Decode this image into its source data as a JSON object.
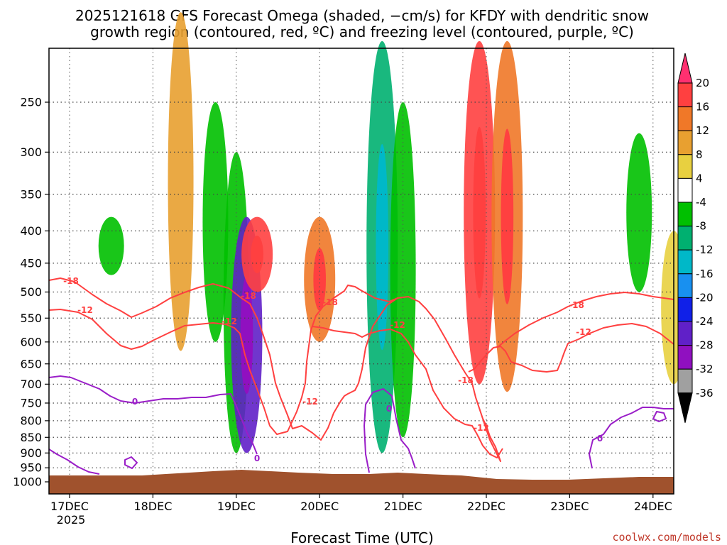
{
  "title_line1": "2025121618 GFS Forecast Omega (shaded, −cm/s) for KFDY with dendritic snow",
  "title_line2": "growth region (contoured, red, ºC) and freezing level (contoured, purple, ºC)",
  "credit": "coolwx.com/models",
  "chart_data": {
    "type": "heatmap",
    "title": "2025121618 GFS Forecast Omega (shaded, −cm/s) for KFDY with dendritic snow growth region (contoured, red, ºC) and freezing level (contoured, purple, ºC)",
    "xlabel": "Forecast Time (UTC)",
    "ylabel": "",
    "x_ticks": [
      "17DEC",
      "18DEC",
      "19DEC",
      "20DEC",
      "21DEC",
      "22DEC",
      "23DEC",
      "24DEC"
    ],
    "x_year_label": "2025",
    "y_ticks": [
      "250",
      "300",
      "350",
      "400",
      "450",
      "500",
      "550",
      "600",
      "650",
      "700",
      "750",
      "800",
      "850",
      "900",
      "950",
      "1000"
    ],
    "y_scale": "log-pressure",
    "ylim": [
      1000,
      200
    ],
    "grid": true,
    "colorbar": {
      "levels": [
        "20",
        "16",
        "12",
        "8",
        "4",
        "-4",
        "-8",
        "-12",
        "-16",
        "-20",
        "-24",
        "-28",
        "-32",
        "-36"
      ],
      "colors": [
        "#ff3070",
        "#ff4040",
        "#f07828",
        "#e8a030",
        "#e8d040",
        "#ffffff",
        "#00c000",
        "#00b070",
        "#00b8c8",
        "#1890f0",
        "#1020e8",
        "#6020c8",
        "#9010c0",
        "#a0a0a0",
        "#000000"
      ]
    },
    "contour_series": [
      {
        "color": "#ff4040",
        "labels": [
          "-18",
          "-12"
        ]
      },
      {
        "color": "#9a1ec8",
        "labels": [
          "0"
        ]
      }
    ],
    "omega_features": [
      {
        "x": "17DEC 12Z",
        "p_top": 380,
        "p_bot": 470,
        "value": -8
      },
      {
        "x": "18DEC 08Z",
        "p_top": 180,
        "p_bot": 620,
        "value": 8
      },
      {
        "x": "18DEC 18Z",
        "p_top": 250,
        "p_bot": 600,
        "value": -8
      },
      {
        "x": "19DEC 00Z",
        "p_top": 300,
        "p_bot": 900,
        "value": -8
      },
      {
        "x": "19DEC 03Z",
        "p_top": 380,
        "p_bot": 900,
        "value": -24
      },
      {
        "x": "19DEC 06Z",
        "p_top": 380,
        "p_bot": 500,
        "value": 16
      },
      {
        "x": "20DEC 00Z",
        "p_top": 380,
        "p_bot": 600,
        "value": 12
      },
      {
        "x": "20DEC 18Z",
        "p_top": 200,
        "p_bot": 900,
        "value": -12
      },
      {
        "x": "21DEC 00Z",
        "p_top": 250,
        "p_bot": 850,
        "value": -8
      },
      {
        "x": "21DEC 22Z",
        "p_top": 200,
        "p_bot": 700,
        "value": 16
      },
      {
        "x": "22DEC 06Z",
        "p_top": 200,
        "p_bot": 720,
        "value": 12
      },
      {
        "x": "23DEC 20Z",
        "p_top": 280,
        "p_bot": 500,
        "value": -8
      },
      {
        "x": "24DEC 06Z",
        "p_top": 400,
        "p_bot": 700,
        "value": 4
      }
    ]
  }
}
